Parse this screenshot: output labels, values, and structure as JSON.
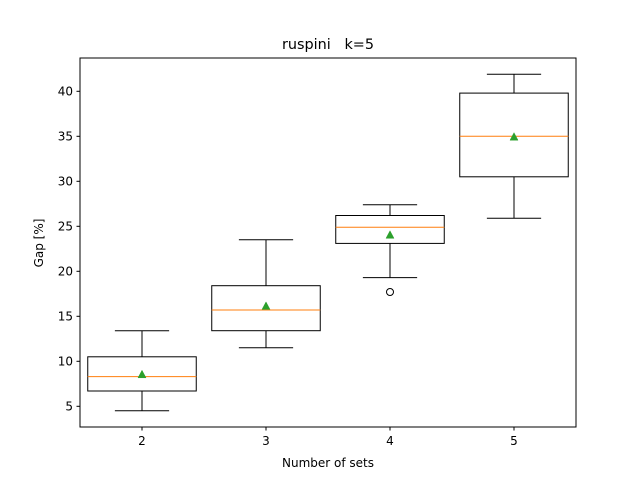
{
  "chart_data": {
    "type": "box",
    "title": "ruspini   k=5",
    "xlabel": "Number of sets",
    "ylabel": "Gap [%]",
    "categories": [
      "2",
      "3",
      "4",
      "5"
    ],
    "yticks": [
      5,
      10,
      15,
      20,
      25,
      30,
      35,
      40
    ],
    "ylim": [
      2.7,
      43.7
    ],
    "grid": false,
    "boxes": [
      {
        "category": "2",
        "whisker_low": 4.5,
        "q1": 6.7,
        "median": 8.3,
        "q3": 10.5,
        "whisker_high": 13.4,
        "mean": 8.5,
        "outliers": []
      },
      {
        "category": "3",
        "whisker_low": 11.5,
        "q1": 13.4,
        "median": 15.7,
        "q3": 18.4,
        "whisker_high": 23.5,
        "mean": 16.1,
        "outliers": []
      },
      {
        "category": "4",
        "whisker_low": 19.3,
        "q1": 23.1,
        "median": 24.9,
        "q3": 26.2,
        "whisker_high": 27.4,
        "mean": 24.0,
        "outliers": [
          17.7
        ]
      },
      {
        "category": "5",
        "whisker_low": 25.9,
        "q1": 30.5,
        "median": 35.0,
        "q3": 39.8,
        "whisker_high": 41.9,
        "mean": 34.9,
        "outliers": []
      }
    ],
    "colors": {
      "box": "#000000",
      "median": "#ff7f0e",
      "mean": "#2ca02c",
      "outlier": "#000000"
    }
  }
}
